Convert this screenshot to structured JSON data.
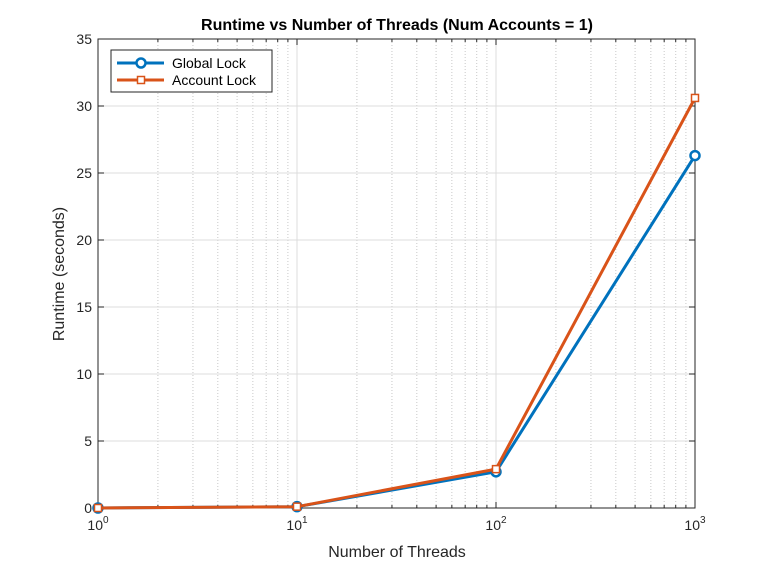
{
  "chart_data": {
    "type": "line",
    "title": "Runtime vs Number of Threads (Num Accounts = 1)",
    "xlabel": "Number of Threads",
    "ylabel": "Runtime (seconds)",
    "xscale": "log",
    "xlim": [
      1,
      1000
    ],
    "ylim": [
      0,
      35
    ],
    "x_ticks": [
      {
        "value": 1,
        "base": "10",
        "exp": "0"
      },
      {
        "value": 10,
        "base": "10",
        "exp": "1"
      },
      {
        "value": 100,
        "base": "10",
        "exp": "2"
      },
      {
        "value": 1000,
        "base": "10",
        "exp": "3"
      }
    ],
    "y_ticks": [
      "0",
      "5",
      "10",
      "15",
      "20",
      "25",
      "30",
      "35"
    ],
    "grid": true,
    "legend_position": "top-left",
    "x": [
      1,
      10,
      100,
      1000
    ],
    "series": [
      {
        "name": "Global Lock",
        "color": "#0072BD",
        "marker": "circle",
        "values": [
          0.0,
          0.1,
          2.7,
          26.3
        ]
      },
      {
        "name": "Account Lock",
        "color": "#D95319",
        "marker": "square",
        "values": [
          0.0,
          0.1,
          2.9,
          30.6
        ]
      }
    ]
  }
}
